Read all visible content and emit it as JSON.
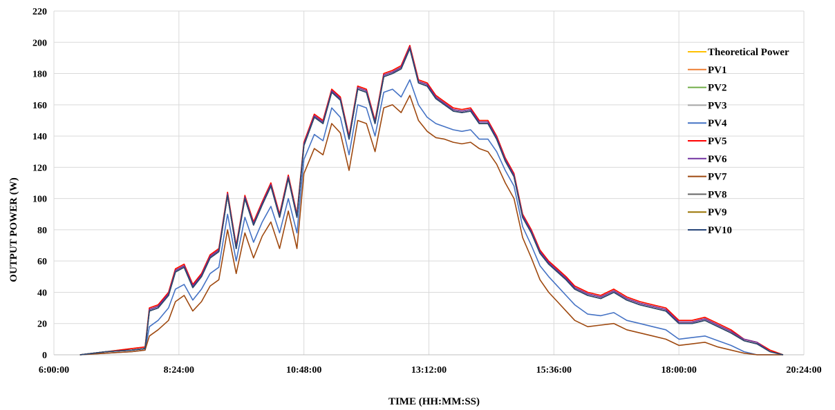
{
  "chart_data": {
    "type": "line",
    "xlabel": "TIME (HH:MM:SS)",
    "ylabel": "OUTPUT POWER (W)",
    "ylim": [
      0,
      220
    ],
    "yticks": [
      0,
      20,
      40,
      60,
      80,
      100,
      120,
      140,
      160,
      180,
      200,
      220
    ],
    "xlim": [
      "6:00:00",
      "20:24:00"
    ],
    "xticks": [
      "6:00:00",
      "8:24:00",
      "10:48:00",
      "13:12:00",
      "15:36:00",
      "18:00:00",
      "20:24:00"
    ],
    "grid": true,
    "legend_position": "right",
    "x": [
      "6:30:00",
      "7:00:00",
      "7:30:00",
      "7:45:00",
      "7:50:00",
      "8:00:00",
      "8:12:00",
      "8:20:00",
      "8:30:00",
      "8:40:00",
      "8:50:00",
      "9:00:00",
      "9:10:00",
      "9:20:00",
      "9:30:00",
      "9:40:00",
      "9:50:00",
      "10:00:00",
      "10:10:00",
      "10:20:00",
      "10:30:00",
      "10:40:00",
      "10:48:00",
      "11:00:00",
      "11:10:00",
      "11:20:00",
      "11:30:00",
      "11:40:00",
      "11:50:00",
      "12:00:00",
      "12:10:00",
      "12:20:00",
      "12:30:00",
      "12:40:00",
      "12:50:00",
      "13:00:00",
      "13:10:00",
      "13:20:00",
      "13:30:00",
      "13:40:00",
      "13:50:00",
      "14:00:00",
      "14:10:00",
      "14:20:00",
      "14:30:00",
      "14:40:00",
      "14:50:00",
      "15:00:00",
      "15:10:00",
      "15:20:00",
      "15:30:00",
      "15:40:00",
      "15:50:00",
      "16:00:00",
      "16:15:00",
      "16:30:00",
      "16:45:00",
      "17:00:00",
      "17:15:00",
      "17:30:00",
      "17:45:00",
      "18:00:00",
      "18:15:00",
      "18:30:00",
      "18:45:00",
      "19:00:00",
      "19:15:00",
      "19:30:00",
      "19:45:00",
      "20:00:00"
    ],
    "series": [
      {
        "name": "Theoretical Power",
        "color": "#ffc000",
        "values": [
          0,
          2,
          4,
          5,
          30,
          32,
          40,
          55,
          58,
          45,
          52,
          64,
          68,
          104,
          70,
          102,
          85,
          98,
          110,
          90,
          115,
          90,
          136,
          154,
          150,
          170,
          165,
          140,
          172,
          170,
          150,
          180,
          182,
          185,
          198,
          176,
          174,
          166,
          162,
          158,
          157,
          158,
          150,
          150,
          140,
          126,
          116,
          90,
          80,
          67,
          60,
          55,
          50,
          44,
          40,
          38,
          42,
          37,
          34,
          32,
          30,
          22,
          22,
          24,
          20,
          16,
          10,
          8,
          3,
          0
        ]
      },
      {
        "name": "PV1",
        "color": "#ed7d31",
        "values": [
          0,
          2,
          3,
          4,
          29,
          31,
          39,
          54,
          57,
          44,
          51,
          63,
          67,
          103,
          69,
          101,
          84,
          97,
          109,
          89,
          114,
          89,
          135,
          153,
          149,
          169,
          164,
          139,
          171,
          169,
          149,
          179,
          181,
          184,
          197,
          175,
          173,
          165,
          161,
          157,
          156,
          157,
          149,
          149,
          139,
          125,
          115,
          89,
          79,
          66,
          59,
          54,
          49,
          43,
          39,
          37,
          41,
          36,
          33,
          31,
          29,
          21,
          21,
          23,
          19,
          15,
          9,
          7,
          2,
          0
        ]
      },
      {
        "name": "PV2",
        "color": "#70ad47",
        "values": [
          0,
          2,
          3,
          4,
          28,
          30,
          38,
          53,
          56,
          43,
          50,
          62,
          66,
          102,
          68,
          100,
          83,
          96,
          108,
          88,
          113,
          88,
          134,
          152,
          148,
          168,
          163,
          138,
          170,
          168,
          148,
          178,
          180,
          183,
          196,
          174,
          172,
          164,
          160,
          156,
          155,
          156,
          148,
          148,
          138,
          124,
          114,
          88,
          78,
          65,
          58,
          53,
          48,
          42,
          38,
          36,
          40,
          35,
          32,
          30,
          28,
          20,
          20,
          22,
          18,
          14,
          9,
          7,
          2,
          0
        ]
      },
      {
        "name": "PV3",
        "color": "#a5a5a5",
        "values": [
          0,
          2,
          3,
          4,
          28,
          30,
          38,
          53,
          56,
          43,
          50,
          62,
          66,
          102,
          68,
          100,
          83,
          96,
          108,
          88,
          113,
          88,
          134,
          152,
          148,
          168,
          163,
          138,
          170,
          168,
          148,
          178,
          180,
          183,
          196,
          174,
          172,
          164,
          160,
          156,
          155,
          156,
          148,
          148,
          138,
          124,
          114,
          88,
          78,
          65,
          58,
          53,
          48,
          42,
          38,
          36,
          40,
          35,
          32,
          30,
          28,
          20,
          20,
          22,
          18,
          14,
          9,
          7,
          2,
          0
        ]
      },
      {
        "name": "PV4",
        "color": "#4472c4",
        "values": [
          0,
          1,
          2,
          3,
          18,
          22,
          30,
          42,
          45,
          35,
          42,
          52,
          56,
          90,
          60,
          88,
          72,
          85,
          95,
          78,
          100,
          78,
          125,
          141,
          137,
          158,
          152,
          128,
          160,
          158,
          140,
          168,
          170,
          165,
          176,
          160,
          152,
          148,
          146,
          144,
          143,
          144,
          138,
          138,
          130,
          118,
          108,
          82,
          70,
          57,
          50,
          44,
          38,
          32,
          26,
          25,
          27,
          22,
          20,
          18,
          16,
          10,
          11,
          12,
          9,
          6,
          2,
          0,
          0,
          0
        ]
      },
      {
        "name": "PV5",
        "color": "#ff0000",
        "values": [
          0,
          2,
          4,
          5,
          30,
          32,
          40,
          55,
          58,
          45,
          52,
          64,
          68,
          104,
          70,
          102,
          85,
          98,
          110,
          90,
          115,
          90,
          136,
          154,
          150,
          170,
          165,
          140,
          172,
          170,
          150,
          180,
          182,
          185,
          198,
          176,
          174,
          166,
          162,
          158,
          157,
          158,
          150,
          150,
          140,
          126,
          116,
          90,
          80,
          67,
          60,
          55,
          50,
          44,
          40,
          38,
          42,
          37,
          34,
          32,
          30,
          22,
          22,
          24,
          20,
          16,
          10,
          8,
          3,
          0
        ]
      },
      {
        "name": "PV6",
        "color": "#7030a0",
        "values": [
          0,
          2,
          3,
          4,
          29,
          31,
          39,
          54,
          57,
          44,
          51,
          63,
          67,
          103,
          69,
          101,
          84,
          97,
          109,
          89,
          114,
          89,
          135,
          153,
          149,
          169,
          164,
          139,
          171,
          169,
          149,
          179,
          181,
          184,
          197,
          175,
          173,
          165,
          161,
          157,
          156,
          157,
          149,
          149,
          139,
          125,
          115,
          89,
          79,
          66,
          59,
          54,
          49,
          43,
          39,
          37,
          41,
          36,
          33,
          31,
          29,
          21,
          21,
          23,
          19,
          15,
          10,
          8,
          2,
          0
        ]
      },
      {
        "name": "PV7",
        "color": "#9e480e",
        "values": [
          0,
          1,
          2,
          3,
          12,
          16,
          22,
          34,
          38,
          28,
          34,
          44,
          48,
          80,
          52,
          78,
          62,
          76,
          85,
          68,
          92,
          68,
          116,
          132,
          128,
          148,
          142,
          118,
          150,
          148,
          130,
          158,
          160,
          155,
          166,
          150,
          143,
          139,
          138,
          136,
          135,
          136,
          132,
          130,
          122,
          110,
          100,
          75,
          62,
          48,
          40,
          34,
          28,
          22,
          18,
          19,
          20,
          16,
          14,
          12,
          10,
          6,
          7,
          8,
          5,
          3,
          1,
          0,
          0,
          0
        ]
      },
      {
        "name": "PV8",
        "color": "#636363",
        "values": [
          0,
          2,
          3,
          4,
          28,
          30,
          38,
          53,
          56,
          43,
          50,
          62,
          66,
          102,
          68,
          100,
          83,
          96,
          108,
          88,
          113,
          88,
          134,
          152,
          148,
          168,
          163,
          138,
          170,
          168,
          148,
          178,
          180,
          183,
          196,
          174,
          172,
          164,
          160,
          156,
          155,
          156,
          148,
          148,
          138,
          124,
          114,
          88,
          78,
          65,
          58,
          53,
          48,
          42,
          38,
          36,
          40,
          35,
          32,
          30,
          28,
          20,
          20,
          22,
          18,
          14,
          9,
          7,
          2,
          0
        ]
      },
      {
        "name": "PV9",
        "color": "#997300",
        "values": [
          0,
          2,
          3,
          4,
          28,
          30,
          38,
          53,
          56,
          43,
          50,
          62,
          66,
          102,
          68,
          100,
          83,
          96,
          108,
          88,
          113,
          88,
          134,
          152,
          148,
          168,
          163,
          138,
          170,
          168,
          148,
          178,
          180,
          183,
          196,
          174,
          172,
          164,
          160,
          156,
          155,
          156,
          148,
          148,
          138,
          124,
          114,
          88,
          78,
          65,
          58,
          53,
          48,
          42,
          38,
          36,
          40,
          35,
          32,
          30,
          28,
          20,
          20,
          22,
          18,
          14,
          9,
          7,
          2,
          0
        ]
      },
      {
        "name": "PV10",
        "color": "#264478",
        "values": [
          0,
          2,
          3,
          4,
          28,
          30,
          38,
          53,
          56,
          43,
          50,
          62,
          66,
          102,
          68,
          100,
          83,
          96,
          108,
          88,
          113,
          88,
          134,
          152,
          148,
          168,
          163,
          138,
          170,
          168,
          148,
          178,
          180,
          183,
          196,
          174,
          172,
          164,
          160,
          156,
          155,
          156,
          148,
          148,
          138,
          124,
          114,
          88,
          78,
          65,
          58,
          53,
          48,
          42,
          38,
          36,
          40,
          35,
          32,
          30,
          28,
          20,
          20,
          22,
          18,
          14,
          9,
          7,
          2,
          0
        ]
      }
    ]
  }
}
